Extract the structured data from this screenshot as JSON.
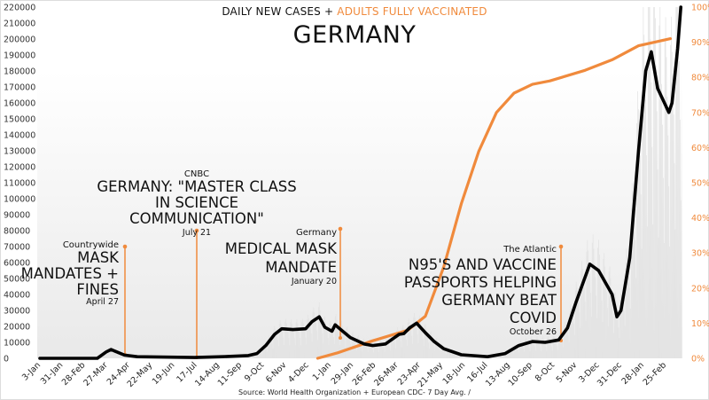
{
  "header": {
    "subtitle_part1": "DAILY NEW CASES + ",
    "subtitle_part2": "ADULTS FULLY VACCINATED",
    "title": "GERMANY"
  },
  "source": "Source: World Health Organization + European CDC- 7 Day Avg. /",
  "annotations": [
    {
      "source": "Countrywide",
      "headline": "MASK MANDATES + FINES",
      "date": "April 27"
    },
    {
      "source": "CNBC",
      "headline": "GERMANY: \"MASTER CLASS IN SCIENCE COMMUNICATION\"",
      "date": "July 21"
    },
    {
      "source": "Germany",
      "headline": "MEDICAL MASK MANDATE",
      "date": "January 20"
    },
    {
      "source": "The Atlantic",
      "headline": "N95'S AND VACCINE PASSPORTS HELPING GERMANY BEAT COVID",
      "date": "October 26"
    }
  ],
  "colors": {
    "cases": "#000000",
    "vaccinated": "#f08a3c",
    "bars": "#e2e2e2"
  },
  "chart_data": {
    "type": "line",
    "title": "GERMANY",
    "subtitle": "DAILY NEW CASES + ADULTS FULLY VACCINATED",
    "x_unit": "days since 3-Jan-2020",
    "x_range": [
      0,
      805
    ],
    "x_tick_labels": [
      "3-Jan",
      "31-Jan",
      "28-Feb",
      "27-Mar",
      "24-Apr",
      "22-May",
      "19-Jun",
      "17-Jul",
      "14-Aug",
      "11-Sep",
      "9-Oct",
      "6-Nov",
      "4-Dec",
      "1-Jan",
      "29-Jan",
      "26-Feb",
      "26-Mar",
      "23-Apr",
      "21-May",
      "18-Jun",
      "16-Jul",
      "13-Aug",
      "10-Sep",
      "8-Oct",
      "5-Nov",
      "3-Dec",
      "31-Dec",
      "28-Jan",
      "25-Feb"
    ],
    "x_tick_step_days": 28,
    "y_left": {
      "range": [
        0,
        220000
      ],
      "step": 10000,
      "label": "Daily new cases (7 day avg.)"
    },
    "y_right": {
      "range": [
        0,
        100
      ],
      "step": 10,
      "suffix": "%",
      "label": "Adults fully vaccinated"
    },
    "series": [
      {
        "name": "Daily new cases (7-day avg.)",
        "axis": "left",
        "x": [
          0,
          72,
          83,
          89,
          94,
          106,
          122,
          194,
          228,
          261,
          272,
          283,
          294,
          303,
          317,
          333,
          341,
          350,
          357,
          366,
          370,
          377,
          389,
          406,
          417,
          433,
          450,
          456,
          463,
          472,
          483,
          494,
          506,
          528,
          561,
          583,
          600,
          617,
          633,
          650,
          661,
          672,
          689,
          700,
          717,
          723,
          728,
          739,
          750,
          759,
          766,
          774,
          788,
          792,
          799,
          803
        ],
        "y": [
          0,
          0,
          4000,
          5500,
          4500,
          2000,
          1000,
          500,
          1000,
          1700,
          3000,
          8000,
          15000,
          18500,
          18000,
          18500,
          23000,
          26000,
          19500,
          17000,
          21000,
          18000,
          13000,
          9000,
          8000,
          9000,
          15000,
          15500,
          19000,
          22000,
          16000,
          10500,
          6000,
          2200,
          1000,
          3000,
          8000,
          10500,
          10000,
          11500,
          19000,
          35500,
          59000,
          55000,
          40000,
          26000,
          30000,
          63000,
          130000,
          180000,
          192000,
          169000,
          154000,
          160000,
          194000,
          220000
        ]
      },
      {
        "name": "Adults fully vaccinated (%)",
        "axis": "right",
        "x": [
          348,
          372,
          417,
          461,
          483,
          506,
          528,
          550,
          572,
          594,
          617,
          639,
          683,
          717,
          750,
          790
        ],
        "y": [
          0,
          1.5,
          5,
          8,
          12,
          26,
          44,
          59,
          70,
          75.5,
          78,
          79,
          82,
          85,
          89,
          91
        ]
      }
    ]
  }
}
